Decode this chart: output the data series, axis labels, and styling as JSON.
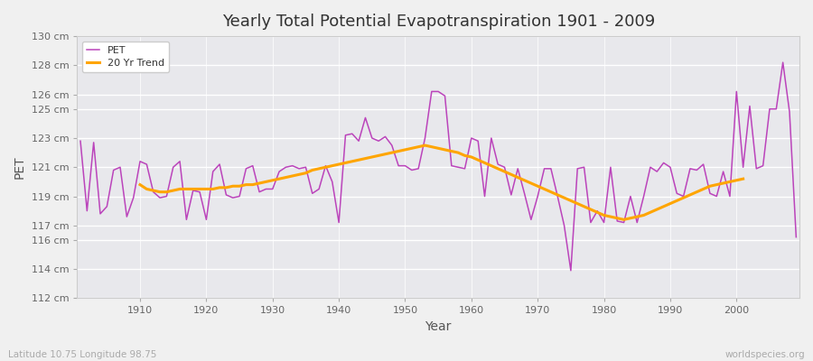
{
  "title": "Yearly Total Potential Evapotranspiration 1901 - 2009",
  "xlabel": "Year",
  "ylabel": "PET",
  "bottom_left_label": "Latitude 10.75 Longitude 98.75",
  "bottom_right_label": "worldspecies.org",
  "pet_color": "#bb44bb",
  "trend_color": "#ffa500",
  "fig_bg_color": "#f0f0f0",
  "plot_bg_color": "#e8e8ec",
  "ylim": [
    112,
    130
  ],
  "yticks": [
    112,
    114,
    116,
    117,
    119,
    121,
    123,
    125,
    126,
    128,
    130
  ],
  "years": [
    1901,
    1902,
    1903,
    1904,
    1905,
    1906,
    1907,
    1908,
    1909,
    1910,
    1911,
    1912,
    1913,
    1914,
    1915,
    1916,
    1917,
    1918,
    1919,
    1920,
    1921,
    1922,
    1923,
    1924,
    1925,
    1926,
    1927,
    1928,
    1929,
    1930,
    1931,
    1932,
    1933,
    1934,
    1935,
    1936,
    1937,
    1938,
    1939,
    1940,
    1941,
    1942,
    1943,
    1944,
    1945,
    1946,
    1947,
    1948,
    1949,
    1950,
    1951,
    1952,
    1953,
    1954,
    1955,
    1956,
    1957,
    1958,
    1959,
    1960,
    1961,
    1962,
    1963,
    1964,
    1965,
    1966,
    1967,
    1968,
    1969,
    1970,
    1971,
    1972,
    1973,
    1974,
    1975,
    1976,
    1977,
    1978,
    1979,
    1980,
    1981,
    1982,
    1983,
    1984,
    1985,
    1986,
    1987,
    1988,
    1989,
    1990,
    1991,
    1992,
    1993,
    1994,
    1995,
    1996,
    1997,
    1998,
    1999,
    2000,
    2001,
    2002,
    2003,
    2004,
    2005,
    2006,
    2007,
    2008,
    2009
  ],
  "pet_values": [
    122.8,
    118.0,
    122.7,
    117.8,
    118.3,
    120.8,
    121.0,
    117.6,
    118.9,
    121.4,
    121.2,
    119.3,
    118.9,
    119.0,
    121.0,
    121.4,
    117.4,
    119.4,
    119.3,
    117.4,
    120.7,
    121.2,
    119.1,
    118.9,
    119.0,
    120.9,
    121.1,
    119.3,
    119.5,
    119.5,
    120.7,
    121.0,
    121.1,
    120.9,
    121.0,
    119.2,
    119.5,
    121.1,
    120.0,
    117.2,
    123.2,
    123.3,
    122.8,
    124.4,
    123.0,
    122.8,
    123.1,
    122.5,
    121.1,
    121.1,
    120.8,
    120.9,
    123.0,
    126.2,
    126.2,
    125.9,
    121.1,
    121.0,
    120.9,
    123.0,
    122.8,
    119.0,
    123.0,
    121.2,
    121.0,
    119.1,
    120.9,
    119.2,
    117.4,
    119.0,
    120.9,
    120.9,
    119.0,
    117.0,
    113.9,
    120.9,
    121.0,
    117.2,
    118.0,
    117.2,
    121.0,
    117.3,
    117.2,
    119.0,
    117.2,
    119.0,
    121.0,
    120.7,
    121.3,
    121.0,
    119.2,
    119.0,
    120.9,
    120.8,
    121.2,
    119.2,
    119.0,
    120.7,
    119.0,
    126.2,
    121.0,
    125.2,
    120.9,
    121.1,
    125.0,
    125.0,
    128.2,
    124.8,
    116.2
  ],
  "trend_values": [
    null,
    null,
    null,
    null,
    null,
    null,
    null,
    null,
    null,
    119.8,
    119.5,
    119.4,
    119.3,
    119.3,
    119.4,
    119.5,
    119.5,
    119.5,
    119.5,
    119.5,
    119.5,
    119.6,
    119.6,
    119.7,
    119.7,
    119.8,
    119.8,
    119.9,
    120.0,
    120.1,
    120.2,
    120.3,
    120.4,
    120.5,
    120.6,
    120.8,
    120.9,
    121.0,
    121.1,
    121.2,
    121.3,
    121.4,
    121.5,
    121.6,
    121.7,
    121.8,
    121.9,
    122.0,
    122.1,
    122.2,
    122.3,
    122.4,
    122.5,
    122.4,
    122.3,
    122.2,
    122.1,
    122.0,
    121.8,
    121.7,
    121.5,
    121.3,
    121.1,
    120.9,
    120.7,
    120.5,
    120.3,
    120.1,
    119.9,
    119.7,
    119.5,
    119.3,
    119.1,
    118.9,
    118.7,
    118.5,
    118.3,
    118.1,
    117.9,
    117.7,
    117.6,
    117.5,
    117.4,
    117.5,
    117.6,
    117.7,
    117.9,
    118.1,
    118.3,
    118.5,
    118.7,
    118.9,
    119.1,
    119.3,
    119.5,
    119.7,
    119.8,
    119.9,
    120.0,
    120.1,
    120.2,
    null,
    null,
    null,
    null,
    null,
    null,
    null,
    null
  ]
}
